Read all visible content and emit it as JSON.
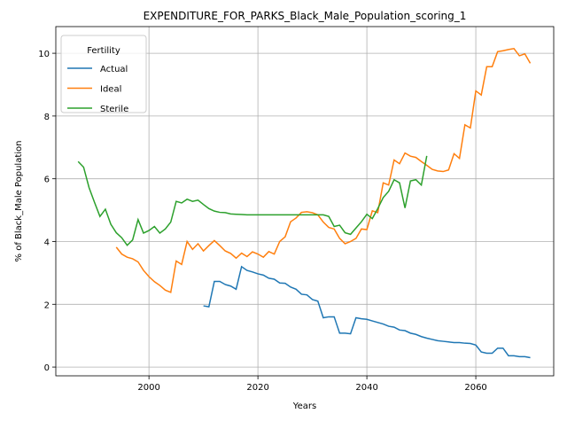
{
  "chart_data": {
    "type": "line",
    "title": "EXPENDITURE_FOR_PARKS_Black_Male_Population_scoring_1",
    "x_label": "Years",
    "y_label": "% of Black_Male Population",
    "x": [
      1987,
      1988,
      1989,
      1990,
      1991,
      1992,
      1993,
      1994,
      1995,
      1996,
      1997,
      1998,
      1999,
      2000,
      2001,
      2002,
      2003,
      2004,
      2005,
      2006,
      2007,
      2008,
      2009,
      2010,
      2011,
      2012,
      2013,
      2014,
      2015,
      2016,
      2017,
      2018,
      2019,
      2020,
      2021,
      2022,
      2023,
      2024,
      2025,
      2026,
      2027,
      2028,
      2029,
      2030,
      2031,
      2032,
      2033,
      2034,
      2035,
      2036,
      2037,
      2038,
      2039,
      2040,
      2041,
      2042,
      2043,
      2044,
      2045,
      2046,
      2047,
      2048,
      2049,
      2050,
      2051,
      2052,
      2053,
      2054,
      2055,
      2056,
      2057,
      2058,
      2059,
      2060,
      2061,
      2062,
      2063,
      2064,
      2065,
      2066,
      2067,
      2068,
      2069,
      2070
    ],
    "series": [
      {
        "name": "Actual",
        "color": "#1f77b4",
        "values": [
          null,
          null,
          null,
          null,
          null,
          null,
          null,
          null,
          null,
          null,
          null,
          null,
          null,
          null,
          null,
          null,
          null,
          null,
          null,
          null,
          null,
          null,
          null,
          1.95,
          1.92,
          2.73,
          2.73,
          2.63,
          2.58,
          2.48,
          3.2,
          3.08,
          3.03,
          2.97,
          2.93,
          2.83,
          2.8,
          2.68,
          2.67,
          2.55,
          2.48,
          2.32,
          2.3,
          2.15,
          2.1,
          1.57,
          1.6,
          1.6,
          1.08,
          1.08,
          1.06,
          1.57,
          1.54,
          1.52,
          1.47,
          1.42,
          1.37,
          1.3,
          1.27,
          1.18,
          1.16,
          1.08,
          1.04,
          0.97,
          0.92,
          0.88,
          0.84,
          0.82,
          0.8,
          0.78,
          0.78,
          0.76,
          0.75,
          0.7,
          0.48,
          0.44,
          0.44,
          0.6,
          0.6,
          0.36,
          0.36,
          0.33,
          0.33,
          0.3
        ]
      },
      {
        "name": "Ideal",
        "color": "#ff7f0e",
        "values": [
          null,
          null,
          null,
          null,
          null,
          null,
          null,
          3.82,
          3.6,
          3.5,
          3.45,
          3.35,
          3.08,
          2.88,
          2.72,
          2.6,
          2.45,
          2.38,
          3.38,
          3.27,
          4.0,
          3.75,
          3.93,
          3.7,
          3.87,
          4.03,
          3.87,
          3.7,
          3.62,
          3.47,
          3.63,
          3.52,
          3.67,
          3.6,
          3.5,
          3.68,
          3.6,
          4.0,
          4.15,
          4.63,
          4.75,
          4.93,
          4.95,
          4.92,
          4.85,
          4.62,
          4.45,
          4.4,
          4.1,
          3.93,
          4.0,
          4.1,
          4.4,
          4.38,
          4.98,
          4.92,
          5.87,
          5.8,
          6.6,
          6.48,
          6.82,
          6.72,
          6.68,
          6.55,
          6.43,
          6.3,
          6.25,
          6.23,
          6.28,
          6.8,
          6.65,
          7.72,
          7.62,
          8.8,
          8.67,
          9.57,
          9.57,
          10.05,
          10.08,
          10.12,
          10.15,
          9.92,
          9.98,
          9.68
        ]
      },
      {
        "name": "Sterile",
        "color": "#2ca02c",
        "values": [
          6.55,
          6.37,
          5.72,
          5.25,
          4.8,
          5.03,
          4.55,
          4.28,
          4.12,
          3.88,
          4.05,
          4.7,
          4.27,
          4.35,
          4.48,
          4.27,
          4.4,
          4.62,
          5.28,
          5.23,
          5.35,
          5.28,
          5.32,
          5.18,
          5.05,
          4.97,
          4.93,
          4.92,
          4.88,
          4.87,
          4.86,
          4.85,
          4.85,
          4.85,
          4.85,
          4.85,
          4.85,
          4.85,
          4.85,
          4.85,
          4.85,
          4.85,
          4.85,
          4.85,
          4.85,
          4.85,
          4.8,
          4.48,
          4.52,
          4.28,
          4.23,
          4.43,
          4.63,
          4.87,
          4.73,
          5.05,
          5.4,
          5.6,
          5.97,
          5.87,
          5.07,
          5.93,
          5.97,
          5.8,
          6.73,
          null,
          null,
          null,
          null,
          null,
          null,
          null,
          null,
          null,
          null,
          null,
          null,
          null,
          null,
          null,
          null,
          null,
          null,
          null
        ]
      }
    ],
    "xlim": [
      1982.9,
      2074.3
    ],
    "ylim": [
      -0.28,
      10.85
    ],
    "xticks": [
      2000,
      2020,
      2040,
      2060
    ],
    "yticks": [
      0,
      2,
      4,
      6,
      8,
      10
    ],
    "grid": true,
    "legend_title": "Fertility",
    "legend_position": "upper-left"
  }
}
